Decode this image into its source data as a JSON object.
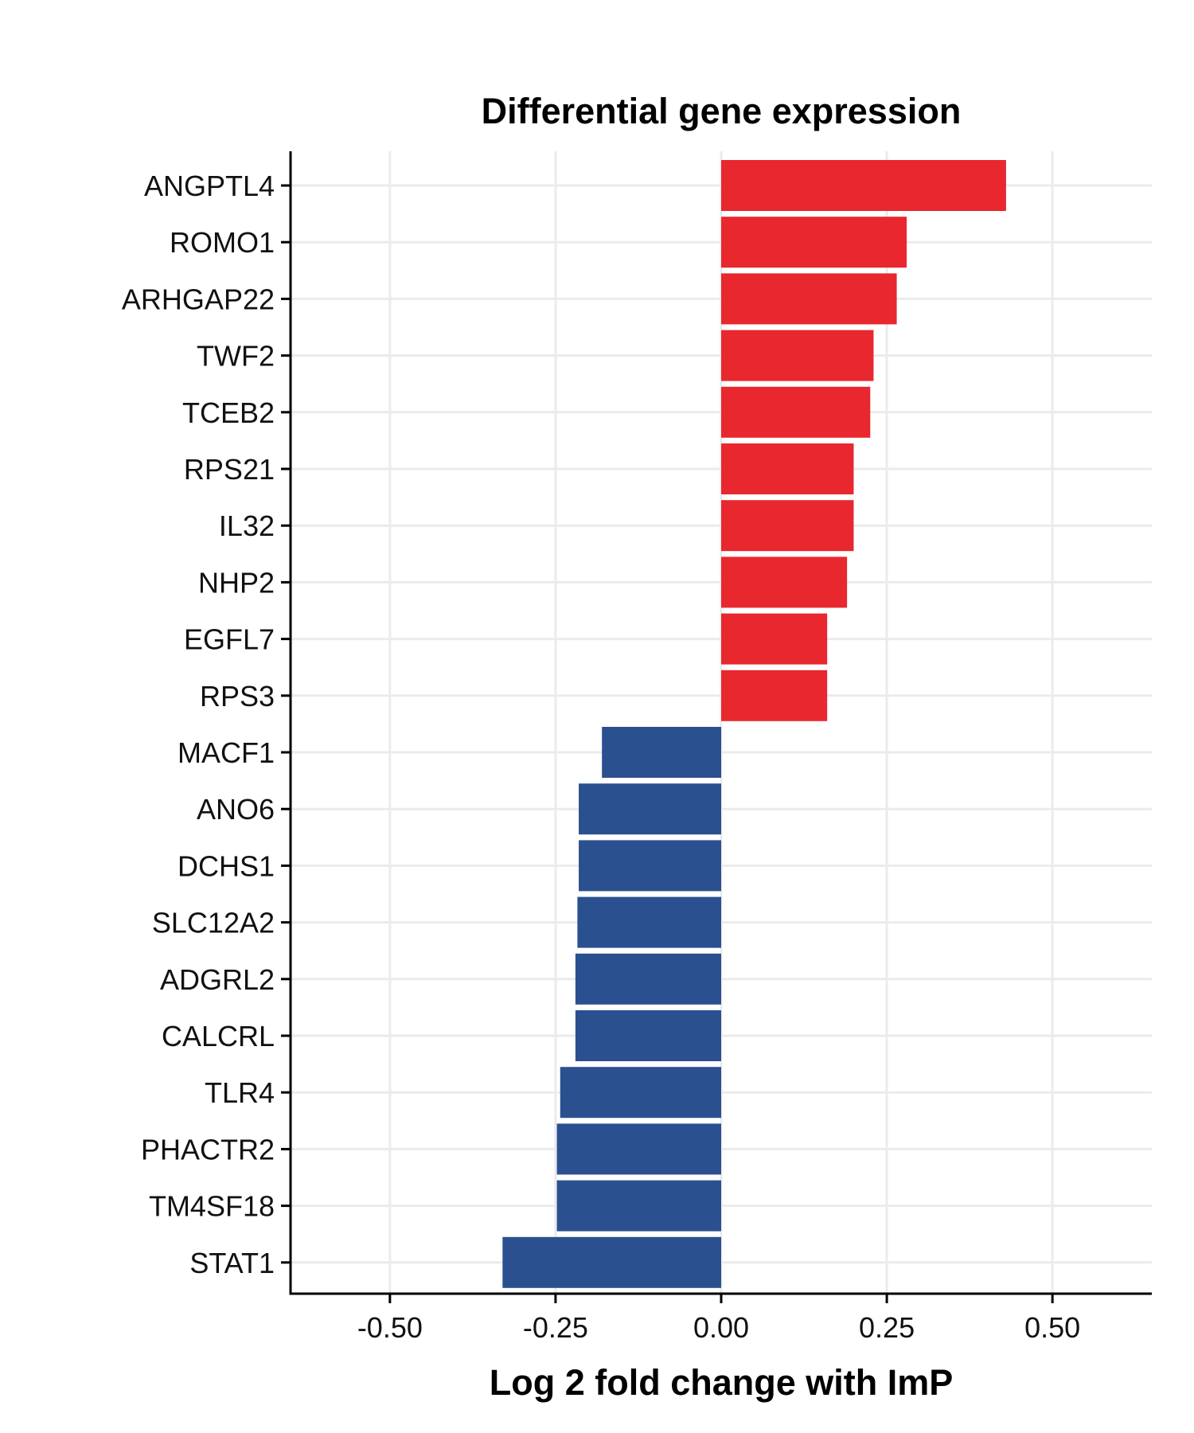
{
  "chart_data": {
    "type": "bar",
    "orientation": "horizontal",
    "title": "Differential gene expression",
    "xlabel": "Log 2 fold change with ImP",
    "ylabel": "",
    "xlim": [
      -0.65,
      0.65
    ],
    "xticks": [
      "-0.50",
      "-0.25",
      "0.00",
      "0.25",
      "0.50"
    ],
    "xtick_values": [
      -0.5,
      -0.25,
      0,
      0.25,
      0.5
    ],
    "grid": true,
    "legend": "none",
    "colors": {
      "positive": "#e8272e",
      "negative": "#2b5090"
    },
    "categories": [
      "ANGPTL4",
      "ROMO1",
      "ARHGAP22",
      "TWF2",
      "TCEB2",
      "RPS21",
      "IL32",
      "NHP2",
      "EGFL7",
      "RPS3",
      "MACF1",
      "ANO6",
      "DCHS1",
      "SLC12A2",
      "ADGRL2",
      "CALCRL",
      "TLR4",
      "PHACTR2",
      "TM4SF18",
      "STAT1"
    ],
    "values": [
      0.43,
      0.28,
      0.265,
      0.23,
      0.225,
      0.2,
      0.2,
      0.19,
      0.16,
      0.16,
      -0.18,
      -0.215,
      -0.215,
      -0.217,
      -0.22,
      -0.22,
      -0.243,
      -0.248,
      -0.248,
      -0.33
    ]
  }
}
